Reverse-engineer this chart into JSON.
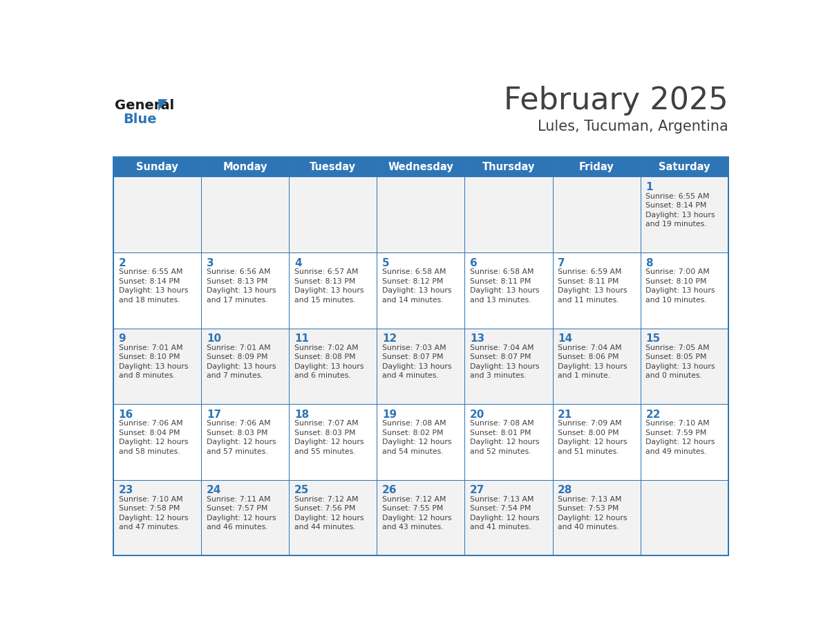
{
  "title": "February 2025",
  "subtitle": "Lules, Tucuman, Argentina",
  "days_of_week": [
    "Sunday",
    "Monday",
    "Tuesday",
    "Wednesday",
    "Thursday",
    "Friday",
    "Saturday"
  ],
  "header_bg": "#2E75B6",
  "header_text": "#FFFFFF",
  "cell_bg_odd": "#F2F2F2",
  "cell_bg_even": "#FFFFFF",
  "border_color": "#2E75B6",
  "text_color": "#404040",
  "day_number_color": "#2E75B6",
  "logo_general_color": "#1a1a1a",
  "logo_blue_color": "#2E75B6",
  "calendar_data": [
    [
      null,
      null,
      null,
      null,
      null,
      null,
      {
        "day": 1,
        "sunrise": "6:55 AM",
        "sunset": "8:14 PM",
        "daylight_line1": "Daylight: 13 hours",
        "daylight_line2": "and 19 minutes."
      }
    ],
    [
      {
        "day": 2,
        "sunrise": "6:55 AM",
        "sunset": "8:14 PM",
        "daylight_line1": "Daylight: 13 hours",
        "daylight_line2": "and 18 minutes."
      },
      {
        "day": 3,
        "sunrise": "6:56 AM",
        "sunset": "8:13 PM",
        "daylight_line1": "Daylight: 13 hours",
        "daylight_line2": "and 17 minutes."
      },
      {
        "day": 4,
        "sunrise": "6:57 AM",
        "sunset": "8:13 PM",
        "daylight_line1": "Daylight: 13 hours",
        "daylight_line2": "and 15 minutes."
      },
      {
        "day": 5,
        "sunrise": "6:58 AM",
        "sunset": "8:12 PM",
        "daylight_line1": "Daylight: 13 hours",
        "daylight_line2": "and 14 minutes."
      },
      {
        "day": 6,
        "sunrise": "6:58 AM",
        "sunset": "8:11 PM",
        "daylight_line1": "Daylight: 13 hours",
        "daylight_line2": "and 13 minutes."
      },
      {
        "day": 7,
        "sunrise": "6:59 AM",
        "sunset": "8:11 PM",
        "daylight_line1": "Daylight: 13 hours",
        "daylight_line2": "and 11 minutes."
      },
      {
        "day": 8,
        "sunrise": "7:00 AM",
        "sunset": "8:10 PM",
        "daylight_line1": "Daylight: 13 hours",
        "daylight_line2": "and 10 minutes."
      }
    ],
    [
      {
        "day": 9,
        "sunrise": "7:01 AM",
        "sunset": "8:10 PM",
        "daylight_line1": "Daylight: 13 hours",
        "daylight_line2": "and 8 minutes."
      },
      {
        "day": 10,
        "sunrise": "7:01 AM",
        "sunset": "8:09 PM",
        "daylight_line1": "Daylight: 13 hours",
        "daylight_line2": "and 7 minutes."
      },
      {
        "day": 11,
        "sunrise": "7:02 AM",
        "sunset": "8:08 PM",
        "daylight_line1": "Daylight: 13 hours",
        "daylight_line2": "and 6 minutes."
      },
      {
        "day": 12,
        "sunrise": "7:03 AM",
        "sunset": "8:07 PM",
        "daylight_line1": "Daylight: 13 hours",
        "daylight_line2": "and 4 minutes."
      },
      {
        "day": 13,
        "sunrise": "7:04 AM",
        "sunset": "8:07 PM",
        "daylight_line1": "Daylight: 13 hours",
        "daylight_line2": "and 3 minutes."
      },
      {
        "day": 14,
        "sunrise": "7:04 AM",
        "sunset": "8:06 PM",
        "daylight_line1": "Daylight: 13 hours",
        "daylight_line2": "and 1 minute."
      },
      {
        "day": 15,
        "sunrise": "7:05 AM",
        "sunset": "8:05 PM",
        "daylight_line1": "Daylight: 13 hours",
        "daylight_line2": "and 0 minutes."
      }
    ],
    [
      {
        "day": 16,
        "sunrise": "7:06 AM",
        "sunset": "8:04 PM",
        "daylight_line1": "Daylight: 12 hours",
        "daylight_line2": "and 58 minutes."
      },
      {
        "day": 17,
        "sunrise": "7:06 AM",
        "sunset": "8:03 PM",
        "daylight_line1": "Daylight: 12 hours",
        "daylight_line2": "and 57 minutes."
      },
      {
        "day": 18,
        "sunrise": "7:07 AM",
        "sunset": "8:03 PM",
        "daylight_line1": "Daylight: 12 hours",
        "daylight_line2": "and 55 minutes."
      },
      {
        "day": 19,
        "sunrise": "7:08 AM",
        "sunset": "8:02 PM",
        "daylight_line1": "Daylight: 12 hours",
        "daylight_line2": "and 54 minutes."
      },
      {
        "day": 20,
        "sunrise": "7:08 AM",
        "sunset": "8:01 PM",
        "daylight_line1": "Daylight: 12 hours",
        "daylight_line2": "and 52 minutes."
      },
      {
        "day": 21,
        "sunrise": "7:09 AM",
        "sunset": "8:00 PM",
        "daylight_line1": "Daylight: 12 hours",
        "daylight_line2": "and 51 minutes."
      },
      {
        "day": 22,
        "sunrise": "7:10 AM",
        "sunset": "7:59 PM",
        "daylight_line1": "Daylight: 12 hours",
        "daylight_line2": "and 49 minutes."
      }
    ],
    [
      {
        "day": 23,
        "sunrise": "7:10 AM",
        "sunset": "7:58 PM",
        "daylight_line1": "Daylight: 12 hours",
        "daylight_line2": "and 47 minutes."
      },
      {
        "day": 24,
        "sunrise": "7:11 AM",
        "sunset": "7:57 PM",
        "daylight_line1": "Daylight: 12 hours",
        "daylight_line2": "and 46 minutes."
      },
      {
        "day": 25,
        "sunrise": "7:12 AM",
        "sunset": "7:56 PM",
        "daylight_line1": "Daylight: 12 hours",
        "daylight_line2": "and 44 minutes."
      },
      {
        "day": 26,
        "sunrise": "7:12 AM",
        "sunset": "7:55 PM",
        "daylight_line1": "Daylight: 12 hours",
        "daylight_line2": "and 43 minutes."
      },
      {
        "day": 27,
        "sunrise": "7:13 AM",
        "sunset": "7:54 PM",
        "daylight_line1": "Daylight: 12 hours",
        "daylight_line2": "and 41 minutes."
      },
      {
        "day": 28,
        "sunrise": "7:13 AM",
        "sunset": "7:53 PM",
        "daylight_line1": "Daylight: 12 hours",
        "daylight_line2": "and 40 minutes."
      },
      null
    ]
  ]
}
